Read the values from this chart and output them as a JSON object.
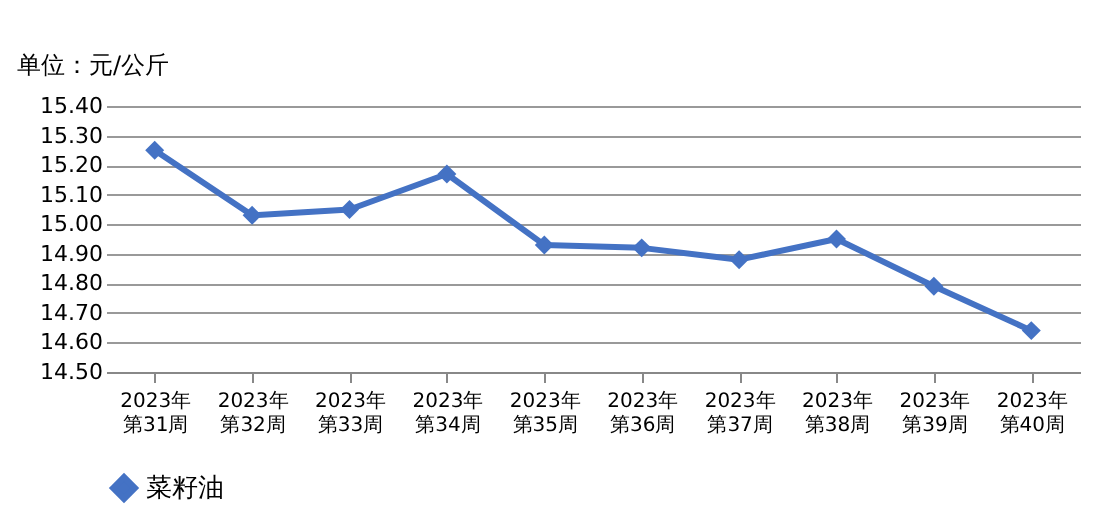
{
  "chart_data": {
    "type": "line",
    "ylabel": "单位：元/公斤",
    "categories": [
      "2023年第31周",
      "2023年第32周",
      "2023年第33周",
      "2023年第34周",
      "2023年第35周",
      "2023年第36周",
      "2023年第37周",
      "2023年第38周",
      "2023年第39周",
      "2023年第40周"
    ],
    "series": [
      {
        "name": "菜籽油",
        "color": "#4472c4",
        "values": [
          15.25,
          15.03,
          15.05,
          15.17,
          14.93,
          14.92,
          14.88,
          14.95,
          14.79,
          14.64
        ]
      }
    ],
    "ylim": [
      14.5,
      15.4
    ],
    "yticks": [
      {
        "value": 14.5,
        "label": "14.50"
      },
      {
        "value": 14.6,
        "label": "14.60"
      },
      {
        "value": 14.7,
        "label": "14.70"
      },
      {
        "value": 14.8,
        "label": "14.80"
      },
      {
        "value": 14.9,
        "label": "14.90"
      },
      {
        "value": 15.0,
        "label": "15.00"
      },
      {
        "value": 15.1,
        "label": "15.10"
      },
      {
        "value": 15.2,
        "label": "15.20"
      },
      {
        "value": 15.3,
        "label": "15.30"
      },
      {
        "value": 15.4,
        "label": "15.40"
      }
    ],
    "grid": "y",
    "legend": "bottom",
    "marker": "diamond",
    "line_style": "solid"
  }
}
